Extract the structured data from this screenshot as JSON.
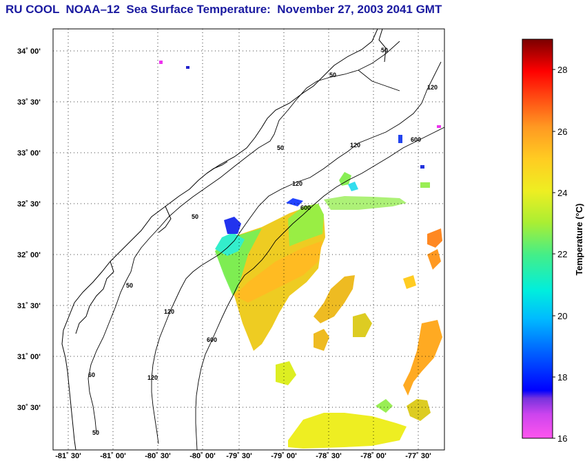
{
  "title": "RU COOL  NOAA–12  Sea Surface Temperature:  November 27, 2003 2041 GMT",
  "map": {
    "lat_labels": [
      "34˚ 00'",
      "33˚ 30'",
      "33˚ 00'",
      "32˚ 30'",
      "32˚ 00'",
      "31˚ 30'",
      "31˚ 00'",
      "30˚ 30'"
    ],
    "lon_labels": [
      "-81˚ 30'",
      "-81˚ 00'",
      "-80˚ 30'",
      "-80˚ 00'",
      "-79˚ 30'",
      "-79˚ 00'",
      "-78˚ 30'",
      "-78˚ 00'",
      "-77˚ 30'"
    ],
    "isobaths": [
      {
        "depth": "50"
      },
      {
        "depth": "120"
      },
      {
        "depth": "600"
      }
    ],
    "contour_labels": [
      "50",
      "50",
      "50",
      "50",
      "50",
      "120",
      "120",
      "120",
      "120",
      "120",
      "600",
      "600",
      "600",
      "60",
      "50"
    ]
  },
  "colorbar": {
    "label": "Temperature (°C)",
    "ticks": [
      "16",
      "18",
      "20",
      "22",
      "24",
      "26",
      "28"
    ],
    "min": 16,
    "max": 29,
    "colors": {
      "16": "#ff55ee",
      "17": "#8833dd",
      "17.5": "#0000ff",
      "19": "#0070ff",
      "20.5": "#00ddee",
      "22": "#44ee88",
      "23": "#aaee33",
      "24": "#eeee22",
      "25": "#ffcc22",
      "26": "#ff9922",
      "27": "#ff4411",
      "28": "#ff0000",
      "29": "#880000"
    }
  }
}
